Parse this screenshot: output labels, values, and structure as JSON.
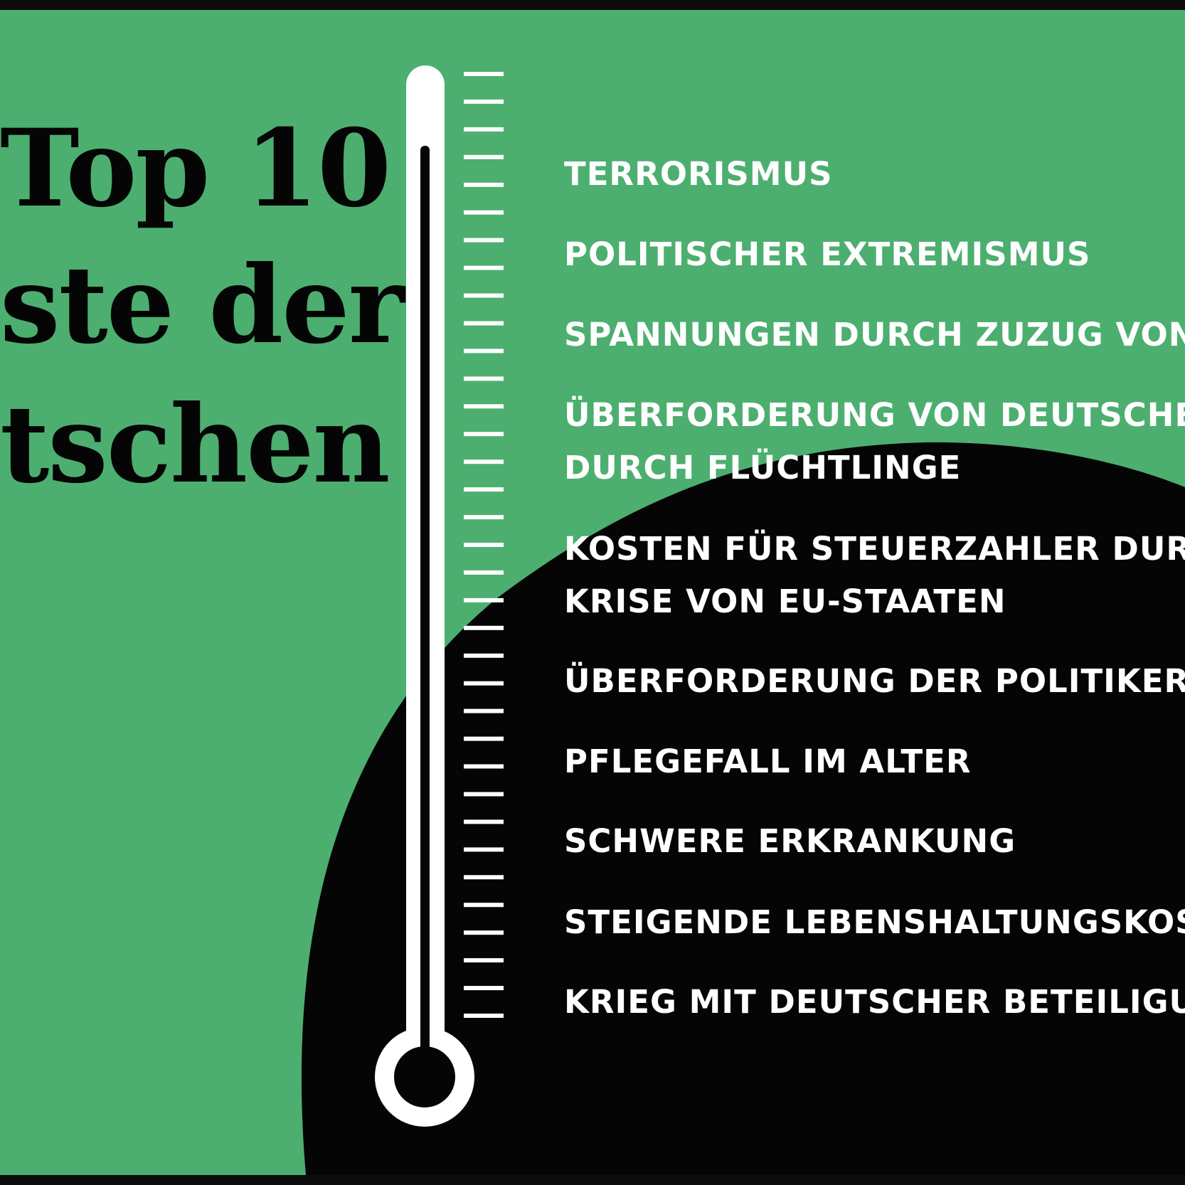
{
  "title": {
    "lines": [
      "Top 10",
      "ste der",
      "tschen"
    ]
  },
  "items": [
    {
      "rank": 1,
      "lines": [
        "TERRORISMUS"
      ]
    },
    {
      "rank": 2,
      "lines": [
        "POLITISCHER EXTREMISMUS"
      ]
    },
    {
      "rank": 3,
      "lines": [
        "SPANNUNGEN DURCH ZUZUG VON"
      ]
    },
    {
      "rank": 4,
      "lines": [
        "ÜBERFORDERUNG VON DEUTSCHE",
        "DURCH FLÜCHTLINGE"
      ]
    },
    {
      "rank": 5,
      "lines": [
        "KOSTEN FÜR STEUERZAHLER DUR",
        "KRISE VON EU-STAATEN"
      ]
    },
    {
      "rank": 6,
      "lines": [
        "ÜBERFORDERUNG DER POLITIKER"
      ]
    },
    {
      "rank": 7,
      "lines": [
        "PFLEGEFALL IM ALTER"
      ]
    },
    {
      "rank": 8,
      "lines": [
        "SCHWERE ERKRANKUNG"
      ]
    },
    {
      "rank": 9,
      "lines": [
        "STEIGENDE LEBENSHALTUNGSKOS"
      ]
    },
    {
      "rank": 10,
      "lines": [
        "KRIEG MIT DEUTSCHER  BETEILIGU"
      ]
    }
  ],
  "thermometer": {
    "tick_count": 35
  },
  "colors": {
    "green": "#4caf6f",
    "black": "#050505",
    "white": "#ffffff",
    "border": "#0c0c0c"
  }
}
